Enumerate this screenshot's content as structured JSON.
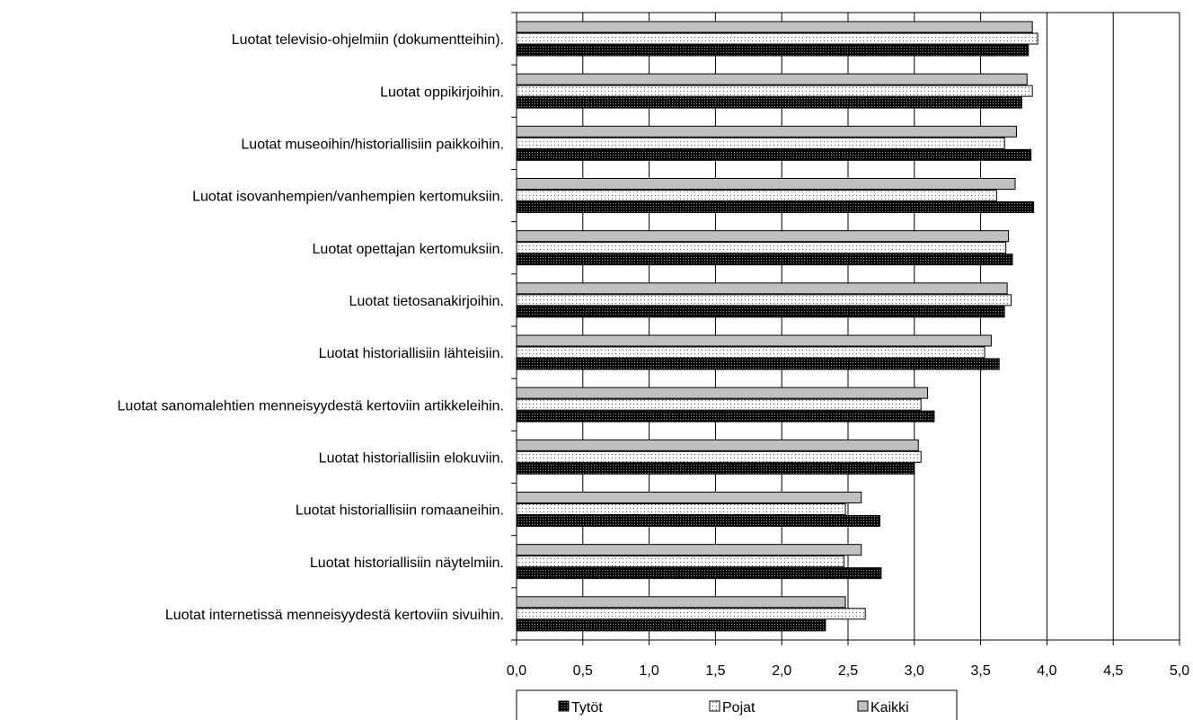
{
  "chart_data": {
    "type": "bar",
    "orientation": "horizontal",
    "title": "",
    "xlabel": "",
    "ylabel": "",
    "xlim": [
      0,
      5
    ],
    "x_ticks": [
      "0,0",
      "0,5",
      "1,0",
      "1,5",
      "2,0",
      "2,5",
      "3,0",
      "3,5",
      "4,0",
      "4,5",
      "5,0"
    ],
    "grid": "vertical major gridlines at 0.5 intervals",
    "legend_position": "bottom",
    "categories": [
      "Luotat televisio-ohjelmiin (dokumentteihin).",
      "Luotat oppikirjoihin.",
      "Luotat museoihin/historiallisiin paikkoihin.",
      "Luotat isovanhempien/vanhempien kertomuksiin.",
      "Luotat opettajan kertomuksiin.",
      "Luotat tietosanakirjoihin.",
      "Luotat historiallisiin lähteisiin.",
      "Luotat sanomalehtien menneisyydestä kertoviin artikkeleihin.",
      "Luotat historiallisiin elokuviin.",
      "Luotat historiallisiin romaaneihin.",
      "Luotat historiallisiin näytelmiin.",
      "Luotat internetissä menneisyydestä kertoviin sivuihin."
    ],
    "series": [
      {
        "name": "Kaikki",
        "fill": "#c0c0c0",
        "pattern": "solid",
        "values": [
          3.89,
          3.85,
          3.77,
          3.76,
          3.71,
          3.7,
          3.58,
          3.1,
          3.03,
          2.6,
          2.6,
          2.48
        ]
      },
      {
        "name": "Pojat",
        "fill": "#ffffff",
        "pattern": "dots",
        "values": [
          3.93,
          3.89,
          3.68,
          3.62,
          3.69,
          3.73,
          3.53,
          3.05,
          3.05,
          2.48,
          2.47,
          2.63
        ]
      },
      {
        "name": "Tytöt",
        "fill": "#000000",
        "pattern": "dark-dots",
        "values": [
          3.86,
          3.81,
          3.88,
          3.9,
          3.74,
          3.68,
          3.64,
          3.15,
          3.0,
          2.74,
          2.75,
          2.33
        ]
      }
    ],
    "legend_order": [
      "Tytöt",
      "Pojat",
      "Kaikki"
    ]
  }
}
